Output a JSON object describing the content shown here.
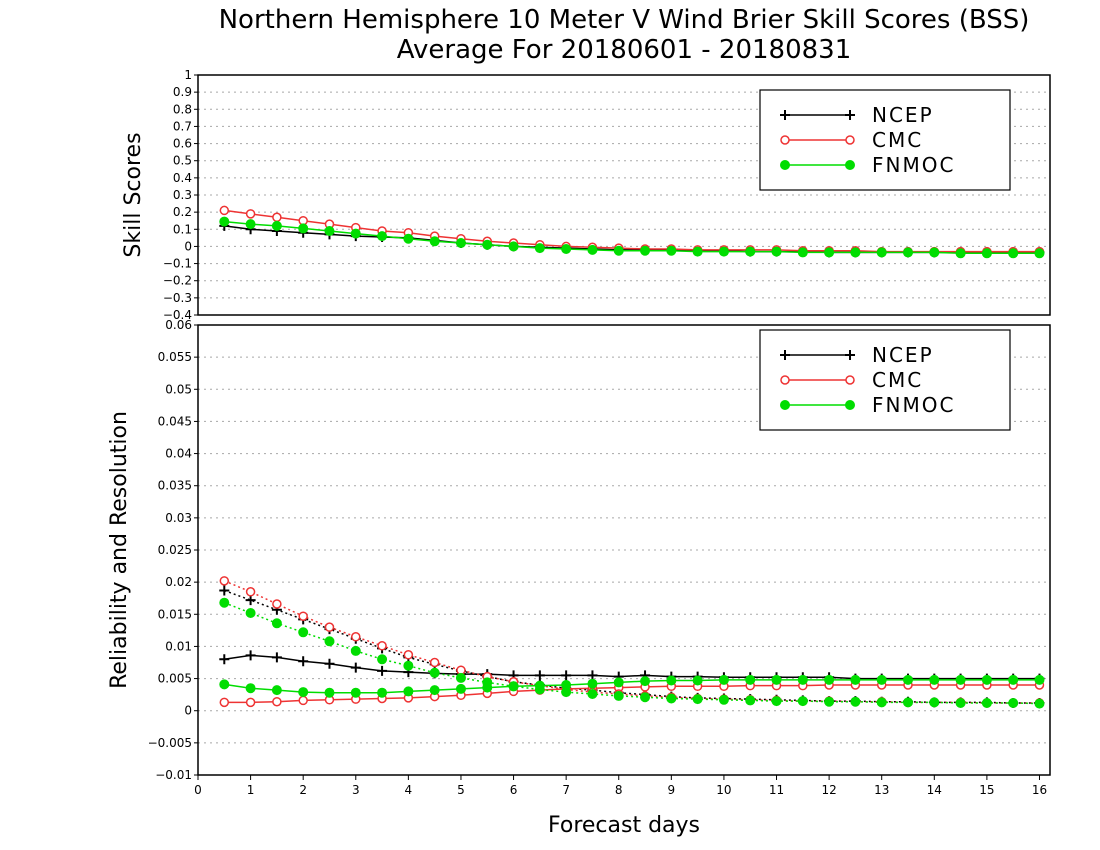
{
  "chart_data": {
    "title": "Northern Hemisphere 10 Meter V Wind Brier Skill Scores (BSS)",
    "subtitle": "Average For 20180601 - 20180831",
    "xlabel": "Forecast days",
    "x_ticks": [
      "0",
      "1",
      "2",
      "3",
      "4",
      "5",
      "6",
      "7",
      "8",
      "9",
      "10",
      "11",
      "12",
      "13",
      "14",
      "15",
      "16"
    ],
    "xlim": [
      0,
      16.2
    ],
    "x": [
      0.5,
      1,
      1.5,
      2,
      2.5,
      3,
      3.5,
      4,
      4.5,
      5,
      5.5,
      6,
      6.5,
      7,
      7.5,
      8,
      8.5,
      9,
      9.5,
      10,
      10.5,
      11,
      11.5,
      12,
      12.5,
      13,
      13.5,
      14,
      14.5,
      15,
      15.5,
      16
    ],
    "styles": {
      "NCEP": {
        "color": "#000000",
        "marker": "plus"
      },
      "CMC": {
        "color": "#ee3333",
        "marker": "open-circle"
      },
      "FNMOC": {
        "color": "#00dd00",
        "marker": "filled-circle"
      }
    },
    "panels": [
      {
        "type": "line",
        "ylabel": "Skill Scores",
        "ylim": [
          -0.4,
          1
        ],
        "y_ticks": [
          "1",
          "0.9",
          "0.8",
          "0.7",
          "0.6",
          "0.5",
          "0.4",
          "0.3",
          "0.2",
          "0.1",
          "0",
          "−0.1",
          "−0.2",
          "−0.3",
          "−0.4"
        ],
        "grid": true,
        "legend": "top-right",
        "series": [
          {
            "name": "NCEP",
            "style": "solid",
            "values": [
              0.12,
              0.1,
              0.09,
              0.08,
              0.07,
              0.06,
              0.055,
              0.05,
              0.035,
              0.02,
              0.01,
              0.0,
              -0.005,
              -0.01,
              -0.015,
              -0.02,
              -0.02,
              -0.02,
              -0.025,
              -0.025,
              -0.03,
              -0.03,
              -0.03,
              -0.035,
              -0.035,
              -0.035,
              -0.035,
              -0.035,
              -0.035,
              -0.035,
              -0.035,
              -0.035
            ]
          },
          {
            "name": "CMC",
            "style": "solid",
            "values": [
              0.21,
              0.19,
              0.17,
              0.15,
              0.13,
              0.11,
              0.09,
              0.08,
              0.06,
              0.045,
              0.03,
              0.02,
              0.01,
              0.0,
              -0.005,
              -0.01,
              -0.015,
              -0.015,
              -0.02,
              -0.02,
              -0.02,
              -0.02,
              -0.025,
              -0.025,
              -0.025,
              -0.03,
              -0.03,
              -0.03,
              -0.03,
              -0.03,
              -0.03,
              -0.03
            ]
          },
          {
            "name": "FNMOC",
            "style": "solid",
            "values": [
              0.145,
              0.13,
              0.12,
              0.105,
              0.09,
              0.075,
              0.06,
              0.045,
              0.03,
              0.02,
              0.01,
              0.0,
              -0.01,
              -0.015,
              -0.02,
              -0.025,
              -0.025,
              -0.025,
              -0.03,
              -0.03,
              -0.03,
              -0.03,
              -0.035,
              -0.035,
              -0.035,
              -0.035,
              -0.035,
              -0.035,
              -0.04,
              -0.04,
              -0.04,
              -0.04
            ]
          }
        ]
      },
      {
        "type": "line",
        "ylabel": "Reliability and Resolution",
        "ylim": [
          -0.01,
          0.06
        ],
        "y_ticks": [
          "0.06",
          "0.055",
          "0.05",
          "0.045",
          "0.04",
          "0.035",
          "0.03",
          "0.025",
          "0.02",
          "0.015",
          "0.01",
          "0.005",
          "0",
          "−0.005",
          "−0.01"
        ],
        "grid": true,
        "legend": "top-right",
        "series": [
          {
            "name": "NCEP",
            "style": "solid",
            "values": [
              0.008,
              0.0086,
              0.0083,
              0.0077,
              0.0073,
              0.0067,
              0.0062,
              0.006,
              0.0058,
              0.0057,
              0.0057,
              0.0055,
              0.0055,
              0.0055,
              0.0055,
              0.0053,
              0.0055,
              0.0053,
              0.0053,
              0.0052,
              0.0052,
              0.0052,
              0.0052,
              0.0052,
              0.005,
              0.005,
              0.005,
              0.005,
              0.005,
              0.005,
              0.005,
              0.005
            ]
          },
          {
            "name": "NCEP",
            "style": "dotted",
            "values": [
              0.0187,
              0.0172,
              0.0157,
              0.0142,
              0.0127,
              0.0112,
              0.0097,
              0.0083,
              0.0072,
              0.0062,
              0.0053,
              0.0045,
              0.004,
              0.0035,
              0.0032,
              0.0028,
              0.0025,
              0.0022,
              0.002,
              0.0019,
              0.0018,
              0.0017,
              0.0016,
              0.0015,
              0.0015,
              0.0014,
              0.0014,
              0.0013,
              0.0013,
              0.0013,
              0.0012,
              0.0012
            ]
          },
          {
            "name": "CMC",
            "style": "solid",
            "values": [
              0.0013,
              0.0013,
              0.0014,
              0.0016,
              0.0017,
              0.0018,
              0.0019,
              0.002,
              0.0022,
              0.0024,
              0.0027,
              0.003,
              0.0032,
              0.0034,
              0.0035,
              0.0036,
              0.0037,
              0.0038,
              0.0038,
              0.0038,
              0.0039,
              0.0039,
              0.0039,
              0.004,
              0.004,
              0.004,
              0.004,
              0.004,
              0.004,
              0.004,
              0.004,
              0.004
            ]
          },
          {
            "name": "CMC",
            "style": "dotted",
            "values": [
              0.0202,
              0.0185,
              0.0166,
              0.0147,
              0.013,
              0.0115,
              0.0101,
              0.0087,
              0.0075,
              0.0063,
              0.0053,
              0.0045,
              0.0039,
              0.0033,
              0.0029,
              0.0026,
              0.0023,
              0.0021,
              0.0019,
              0.0018,
              0.0017,
              0.0016,
              0.0015,
              0.0015,
              0.0014,
              0.0014,
              0.0013,
              0.0013,
              0.0013,
              0.0012,
              0.0012,
              0.0012
            ]
          },
          {
            "name": "FNMOC",
            "style": "solid",
            "values": [
              0.0041,
              0.0035,
              0.0032,
              0.0029,
              0.0028,
              0.0028,
              0.0028,
              0.003,
              0.0032,
              0.0034,
              0.0036,
              0.0038,
              0.0039,
              0.004,
              0.0042,
              0.0044,
              0.0046,
              0.0047,
              0.0047,
              0.0048,
              0.0048,
              0.0048,
              0.0048,
              0.0048,
              0.0048,
              0.0048,
              0.0048,
              0.0048,
              0.0048,
              0.0048,
              0.0048,
              0.0048
            ]
          },
          {
            "name": "FNMOC",
            "style": "dotted",
            "values": [
              0.0168,
              0.0152,
              0.0136,
              0.0122,
              0.0108,
              0.0093,
              0.008,
              0.007,
              0.0059,
              0.0051,
              0.0044,
              0.0038,
              0.0033,
              0.0029,
              0.0026,
              0.0023,
              0.0021,
              0.0019,
              0.0018,
              0.0017,
              0.0016,
              0.0015,
              0.0015,
              0.0014,
              0.0014,
              0.0013,
              0.0013,
              0.0013,
              0.0012,
              0.0012,
              0.0012,
              0.0011
            ]
          }
        ]
      }
    ]
  }
}
